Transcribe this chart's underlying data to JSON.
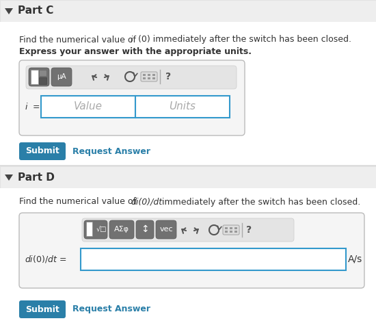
{
  "bg_color": "#f0f0f0",
  "white": "#ffffff",
  "partC_header": "Part C",
  "partD_header": "Part D",
  "partC_question_plain": "Find the numerical value of ",
  "partC_question_italic": "i",
  "partC_question_mid": " (0) immediately after the switch has been closed.",
  "partC_bold": "Express your answer with the appropriate units.",
  "partD_question_plain": "Find the numerical value of ",
  "partD_question_italic": "di(0)/dt",
  "partD_question_end": " immediately after the switch has been closed.",
  "submit_color": "#2a7fa8",
  "link_color": "#2a7fa8",
  "input_border_color": "#3399cc",
  "toolbar_bg": "#e8e8e8",
  "toolbar_btn_color": "#6b6b6b",
  "placeholder_color": "#aaaaaa",
  "text_color": "#333333",
  "units_text": "A/s",
  "value_placeholder": "Value",
  "units_placeholder": "Units",
  "part_header_color": "#333333",
  "header_bg": "#eeeeee",
  "content_bg": "#ffffff",
  "box_bg": "#f5f5f5",
  "box_border": "#bbbbbb",
  "toolbar_inner_bg": "#e4e4e4",
  "sep_color": "#dddddd"
}
